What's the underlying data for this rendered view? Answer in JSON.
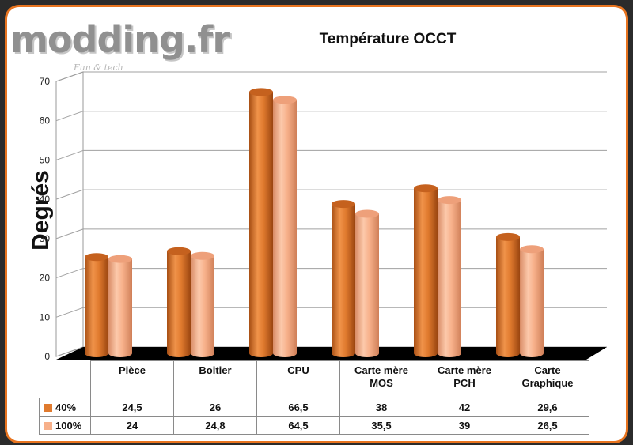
{
  "brand": {
    "logo_text": "modding.fr",
    "tagline": "Fun & tech"
  },
  "chart_data": {
    "type": "bar",
    "title": "Température OCCT",
    "xlabel": "",
    "ylabel": "Degrés",
    "ylim": [
      0,
      70
    ],
    "yticks": [
      0,
      10,
      20,
      30,
      40,
      50,
      60,
      70
    ],
    "grid": true,
    "legend": "data-table",
    "categories": [
      {
        "line1": "Pièce",
        "line2": ""
      },
      {
        "line1": "Boitier",
        "line2": ""
      },
      {
        "line1": "CPU",
        "line2": ""
      },
      {
        "line1": "Carte mère",
        "line2": "MOS"
      },
      {
        "line1": "Carte mère",
        "line2": "PCH"
      },
      {
        "line1": "Carte",
        "line2": "Graphique"
      }
    ],
    "series": [
      {
        "name": "40%",
        "color": "#e07a2e",
        "values": [
          "24,5",
          "26",
          "66,5",
          "38",
          "42",
          "29,6"
        ]
      },
      {
        "name": "100%",
        "color": "#f7b08a",
        "values": [
          "24",
          "24,8",
          "64,5",
          "35,5",
          "39",
          "26,5"
        ]
      }
    ]
  }
}
